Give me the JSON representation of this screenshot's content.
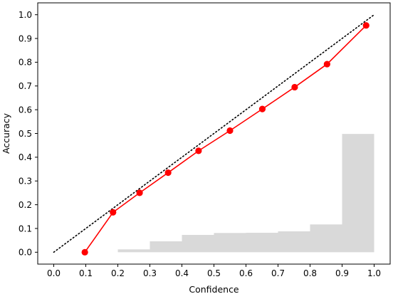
{
  "chart_data": {
    "type": "line",
    "title": "",
    "xlabel": "Confidence",
    "ylabel": "Accuracy",
    "xlim": [
      -0.05,
      1.05
    ],
    "ylim": [
      -0.05,
      1.05
    ],
    "xticks": [
      "0.0",
      "0.1",
      "0.2",
      "0.3",
      "0.4",
      "0.5",
      "0.6",
      "0.7",
      "0.8",
      "0.9",
      "1.0"
    ],
    "yticks": [
      "0.0",
      "0.1",
      "0.2",
      "0.3",
      "0.4",
      "0.5",
      "0.6",
      "0.7",
      "0.8",
      "0.9",
      "1.0"
    ],
    "grid": false,
    "legend": "none",
    "series": [
      {
        "type": "line",
        "color": "#ff0000",
        "marker": "circle",
        "x": [
          0.097,
          0.185,
          0.268,
          0.357,
          0.452,
          0.55,
          0.651,
          0.752,
          0.853,
          0.975
        ],
        "y": [
          0.0,
          0.168,
          0.25,
          0.335,
          0.427,
          0.512,
          0.603,
          0.695,
          0.792,
          0.955
        ]
      },
      {
        "type": "line",
        "style": "dotted",
        "color": "#000000",
        "x": [
          0.0,
          1.0
        ],
        "y": [
          0.0,
          1.0
        ]
      }
    ],
    "histogram": {
      "color": "#d9d9d9",
      "bins": [
        0.2,
        0.3,
        0.4,
        0.5,
        0.6,
        0.7,
        0.8,
        0.9,
        1.0
      ],
      "values": [
        0.012,
        0.046,
        0.073,
        0.081,
        0.082,
        0.088,
        0.117,
        0.498
      ]
    }
  }
}
